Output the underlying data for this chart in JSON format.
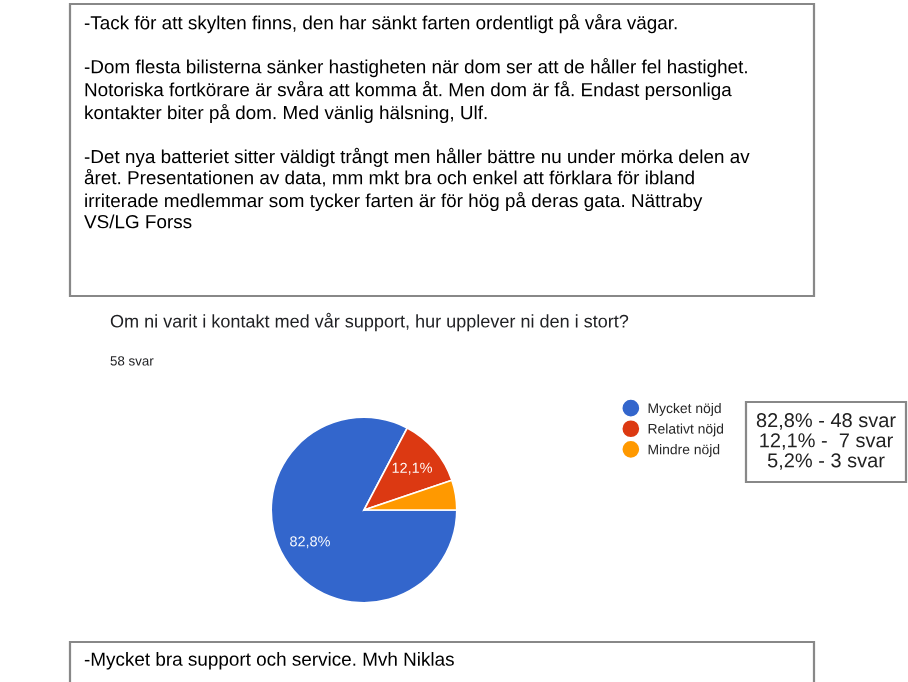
{
  "chart_data": {
    "type": "pie",
    "title": "Om ni varit i kontakt med vår support, hur upplever ni den i stort?",
    "subtitle": "58 svar",
    "categories": [
      "Mycket nöjd",
      "Relativt nöjd",
      "Mindre nöjd"
    ],
    "values": [
      82.8,
      12.1,
      5.2
    ],
    "colors": [
      "#3366cc",
      "#dc3912",
      "#ff9900"
    ],
    "value_labels": [
      "82,8%",
      "12,1%",
      null
    ],
    "legend": "right",
    "annotations": [
      "-Tack för att skylten finns, den har sänkt farten ordentligt på våra vägar.\n\n-Dom flesta bilisterna sänker hastigheten när dom ser att de håller fel hastighet.\nNotoriska fortkörare är svåra att komma åt. Men dom är få. Endast personliga\nkontakter biter på dom. Med vänlig hälsning, Ulf.\n\n-Det nya batteriet sitter väldigt trångt men håller bättre nu under mörka delen av\nåret. Presentationen av data, mm mkt bra och enkel att förklara för ibland\nirriterade medlemmar som tycker farten är för hög på deras gata. Nättraby\nVS/LG Forss",
      "82,8% - 48 svar\n12,1% -  7 svar\n5,2% - 3 svar",
      "-Mycket bra support och service. Mvh Niklas"
    ]
  }
}
